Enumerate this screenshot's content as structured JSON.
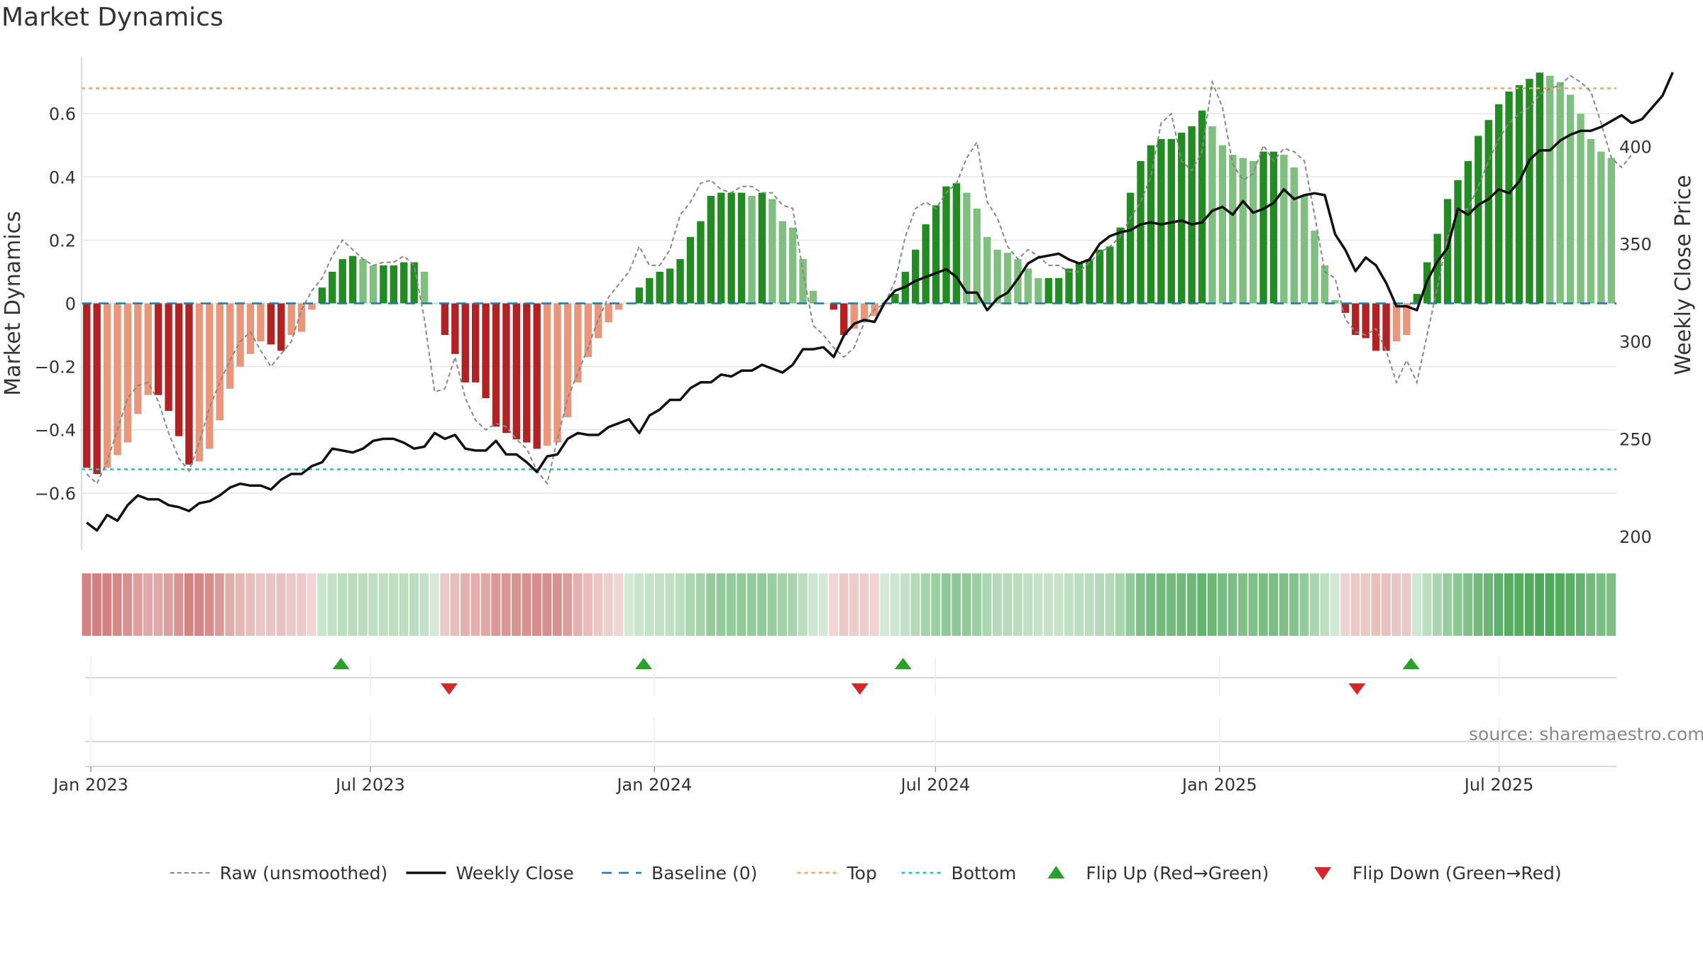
{
  "title": "Market Dynamics",
  "source": "source: sharemaestro.com",
  "colors": {
    "strong_up": "#228b22",
    "weak_up": "#7fbf7f",
    "strong_down": "#b22222",
    "weak_down": "#e9967a",
    "close": "#111111",
    "raw": "#888888",
    "baseline": "#1f77b4",
    "top": "#f4a460",
    "bottom": "#20c0c0",
    "flip_up": "#2ca02c",
    "flip_down": "#d62728"
  },
  "chart_data": {
    "type": "bar",
    "ylabel": "Market Dynamics",
    "y2label": "Weekly Close Price",
    "ylim": [
      -0.78,
      0.78
    ],
    "y2lim": [
      193,
      446
    ],
    "yticks": [
      -0.6,
      -0.4,
      -0.2,
      0,
      0.2,
      0.4,
      0.6
    ],
    "ytick_labels": [
      "−0.6",
      "−0.4",
      "−0.2",
      "0",
      "0.2",
      "0.4",
      "0.6"
    ],
    "y2ticks": [
      200,
      250,
      300,
      350,
      400
    ],
    "y2tick_labels": [
      "200",
      "250",
      "300",
      "350",
      "400"
    ],
    "x_start": "2022-12-26",
    "x_end": "2025-09-15",
    "xticks": [
      "2023-01-01",
      "2023-07-01",
      "2024-01-01",
      "2024-07-01",
      "2025-01-01",
      "2025-07-01"
    ],
    "xtick_labels": [
      "Jan 2023",
      "Jul 2023",
      "Jan 2024",
      "Jul 2024",
      "Jan 2025",
      "Jul 2025"
    ],
    "top_level": 0.68,
    "bottom_level": -0.525,
    "baseline": 0,
    "momentum": [
      -0.52,
      -0.54,
      -0.52,
      -0.48,
      -0.44,
      -0.35,
      -0.29,
      -0.29,
      -0.34,
      -0.42,
      -0.51,
      -0.5,
      -0.46,
      -0.37,
      -0.27,
      -0.2,
      -0.16,
      -0.12,
      -0.13,
      -0.15,
      -0.1,
      -0.09,
      -0.02,
      0.05,
      0.1,
      0.14,
      0.15,
      0.14,
      0.12,
      0.12,
      0.12,
      0.13,
      0.13,
      0.1,
      0.0,
      -0.1,
      -0.16,
      -0.25,
      -0.25,
      -0.3,
      -0.39,
      -0.41,
      -0.43,
      -0.44,
      -0.46,
      -0.45,
      -0.44,
      -0.36,
      -0.25,
      -0.17,
      -0.11,
      -0.06,
      -0.02,
      0.0,
      0.05,
      0.08,
      0.1,
      0.11,
      0.14,
      0.21,
      0.26,
      0.34,
      0.35,
      0.35,
      0.35,
      0.34,
      0.35,
      0.33,
      0.26,
      0.24,
      0.14,
      0.04,
      0.0,
      -0.02,
      -0.1,
      -0.08,
      -0.06,
      -0.04,
      0.0,
      0.03,
      0.1,
      0.17,
      0.25,
      0.31,
      0.37,
      0.38,
      0.35,
      0.3,
      0.21,
      0.17,
      0.16,
      0.14,
      0.11,
      0.08,
      0.08,
      0.08,
      0.11,
      0.13,
      0.14,
      0.17,
      0.18,
      0.24,
      0.35,
      0.45,
      0.5,
      0.52,
      0.52,
      0.54,
      0.56,
      0.61,
      0.56,
      0.5,
      0.47,
      0.46,
      0.45,
      0.48,
      0.48,
      0.47,
      0.43,
      0.34,
      0.23,
      0.12,
      0.01,
      -0.03,
      -0.1,
      -0.11,
      -0.15,
      -0.15,
      -0.12,
      -0.1,
      0.03,
      0.13,
      0.22,
      0.33,
      0.39,
      0.45,
      0.53,
      0.58,
      0.63,
      0.67,
      0.69,
      0.71,
      0.73,
      0.72,
      0.7,
      0.66,
      0.6,
      0.52,
      0.48,
      0.46
    ],
    "momentum_raw": [
      -0.54,
      -0.57,
      -0.5,
      -0.4,
      -0.3,
      -0.26,
      -0.25,
      -0.31,
      -0.41,
      -0.49,
      -0.53,
      -0.44,
      -0.33,
      -0.25,
      -0.18,
      -0.12,
      -0.09,
      -0.15,
      -0.2,
      -0.16,
      -0.12,
      -0.02,
      0.04,
      0.08,
      0.15,
      0.2,
      0.17,
      0.14,
      0.12,
      0.13,
      0.13,
      0.15,
      0.12,
      -0.05,
      -0.28,
      -0.27,
      -0.17,
      -0.3,
      -0.37,
      -0.4,
      -0.38,
      -0.39,
      -0.43,
      -0.46,
      -0.53,
      -0.57,
      -0.43,
      -0.3,
      -0.22,
      -0.14,
      -0.05,
      0.02,
      0.06,
      0.1,
      0.18,
      0.12,
      0.12,
      0.17,
      0.28,
      0.32,
      0.38,
      0.39,
      0.36,
      0.35,
      0.37,
      0.37,
      0.35,
      0.35,
      0.31,
      0.3,
      0.1,
      -0.07,
      -0.1,
      -0.14,
      -0.17,
      -0.14,
      -0.06,
      -0.02,
      0.0,
      0.07,
      0.21,
      0.3,
      0.32,
      0.3,
      0.35,
      0.38,
      0.46,
      0.51,
      0.32,
      0.27,
      0.18,
      0.14,
      0.17,
      0.15,
      0.12,
      0.12,
      0.1,
      0.1,
      0.13,
      0.16,
      0.18,
      0.21,
      0.27,
      0.32,
      0.4,
      0.57,
      0.6,
      0.45,
      0.42,
      0.48,
      0.7,
      0.62,
      0.44,
      0.39,
      0.41,
      0.5,
      0.45,
      0.49,
      0.48,
      0.45,
      0.28,
      0.1,
      0.08,
      -0.05,
      -0.09,
      -0.1,
      -0.08,
      -0.15,
      -0.25,
      -0.18,
      -0.25,
      -0.1,
      0.05,
      0.21,
      0.29,
      0.3,
      0.37,
      0.45,
      0.52,
      0.57,
      0.6,
      0.62,
      0.66,
      0.68,
      0.69,
      0.72,
      0.7,
      0.67,
      0.57,
      0.46,
      0.43,
      0.47
    ],
    "weekly_close": [
      207,
      203,
      211,
      208,
      216,
      221,
      219,
      219,
      216,
      215,
      213,
      217,
      218,
      221,
      225,
      227,
      226,
      226,
      224,
      229,
      232,
      232,
      236,
      238,
      245,
      244,
      243,
      245,
      249,
      250,
      250,
      248,
      245,
      246,
      253,
      250,
      252,
      245,
      244,
      244,
      249,
      242,
      242,
      238,
      233,
      241,
      242,
      250,
      253,
      252,
      252,
      256,
      258,
      260,
      253,
      262,
      265,
      270,
      270,
      276,
      279,
      279,
      283,
      282,
      285,
      285,
      288,
      286,
      284,
      288,
      296,
      296,
      297,
      292,
      303,
      309,
      311,
      310,
      320,
      326,
      328,
      331,
      333,
      335,
      337,
      333,
      325,
      325,
      316,
      322,
      325,
      332,
      340,
      343,
      344,
      345,
      342,
      340,
      342,
      350,
      354,
      356,
      357,
      360,
      361,
      360,
      361,
      362,
      360,
      361,
      367,
      369,
      365,
      372,
      366,
      368,
      371,
      378,
      373,
      375,
      376,
      375,
      355,
      347,
      336,
      343,
      339,
      330,
      318,
      318,
      316,
      331,
      341,
      348,
      368,
      365,
      370,
      373,
      378,
      376,
      382,
      393,
      398,
      398,
      403,
      406,
      408,
      408,
      410,
      413,
      416,
      412,
      414,
      420,
      426,
      438
    ]
  },
  "strip": {
    "values": [
      -0.52,
      -0.54,
      -0.52,
      -0.48,
      -0.44,
      -0.35,
      -0.29,
      -0.29,
      -0.34,
      -0.42,
      -0.51,
      -0.5,
      -0.46,
      -0.37,
      -0.27,
      -0.2,
      -0.16,
      -0.12,
      -0.13,
      -0.15,
      -0.1,
      -0.09,
      -0.02,
      0.05,
      0.1,
      0.14,
      0.15,
      0.14,
      0.12,
      0.12,
      0.12,
      0.13,
      0.13,
      0.1,
      0.0,
      -0.1,
      -0.16,
      -0.25,
      -0.25,
      -0.3,
      -0.39,
      -0.41,
      -0.43,
      -0.44,
      -0.46,
      -0.45,
      -0.44,
      -0.36,
      -0.25,
      -0.17,
      -0.11,
      -0.06,
      -0.02,
      0.0,
      0.05,
      0.08,
      0.1,
      0.11,
      0.14,
      0.21,
      0.26,
      0.34,
      0.35,
      0.35,
      0.35,
      0.34,
      0.35,
      0.33,
      0.26,
      0.24,
      0.14,
      0.04,
      0.0,
      -0.02,
      -0.1,
      -0.08,
      -0.06,
      -0.04,
      0.0,
      0.03,
      0.1,
      0.17,
      0.25,
      0.31,
      0.37,
      0.38,
      0.35,
      0.3,
      0.21,
      0.17,
      0.16,
      0.14,
      0.11,
      0.08,
      0.08,
      0.08,
      0.11,
      0.13,
      0.14,
      0.17,
      0.18,
      0.24,
      0.35,
      0.45,
      0.5,
      0.52,
      0.52,
      0.54,
      0.56,
      0.61,
      0.56,
      0.5,
      0.47,
      0.46,
      0.45,
      0.48,
      0.48,
      0.47,
      0.43,
      0.34,
      0.23,
      0.12,
      0.01,
      -0.03,
      -0.1,
      -0.11,
      -0.15,
      -0.15,
      -0.12,
      -0.1,
      0.03,
      0.13,
      0.22,
      0.33,
      0.39,
      0.45,
      0.53,
      0.58,
      0.63,
      0.67,
      0.69,
      0.71,
      0.73,
      0.72,
      0.7,
      0.66,
      0.6,
      0.52,
      0.48,
      0.46
    ]
  },
  "flips": {
    "up": [
      "2023-06-12",
      "2023-12-25",
      "2024-06-10",
      "2025-05-05"
    ],
    "down": [
      "2023-08-21",
      "2024-05-13",
      "2025-03-31"
    ]
  },
  "legend": [
    {
      "label": "Raw (unsmoothed)",
      "kind": "raw"
    },
    {
      "label": "Weekly Close",
      "kind": "close"
    },
    {
      "label": "Baseline (0)",
      "kind": "baseline"
    },
    {
      "label": "Top",
      "kind": "top"
    },
    {
      "label": "Bottom",
      "kind": "bottom"
    },
    {
      "label": "Flip Up (Red→Green)",
      "kind": "flip_up"
    },
    {
      "label": "Flip Down (Green→Red)",
      "kind": "flip_down"
    }
  ]
}
